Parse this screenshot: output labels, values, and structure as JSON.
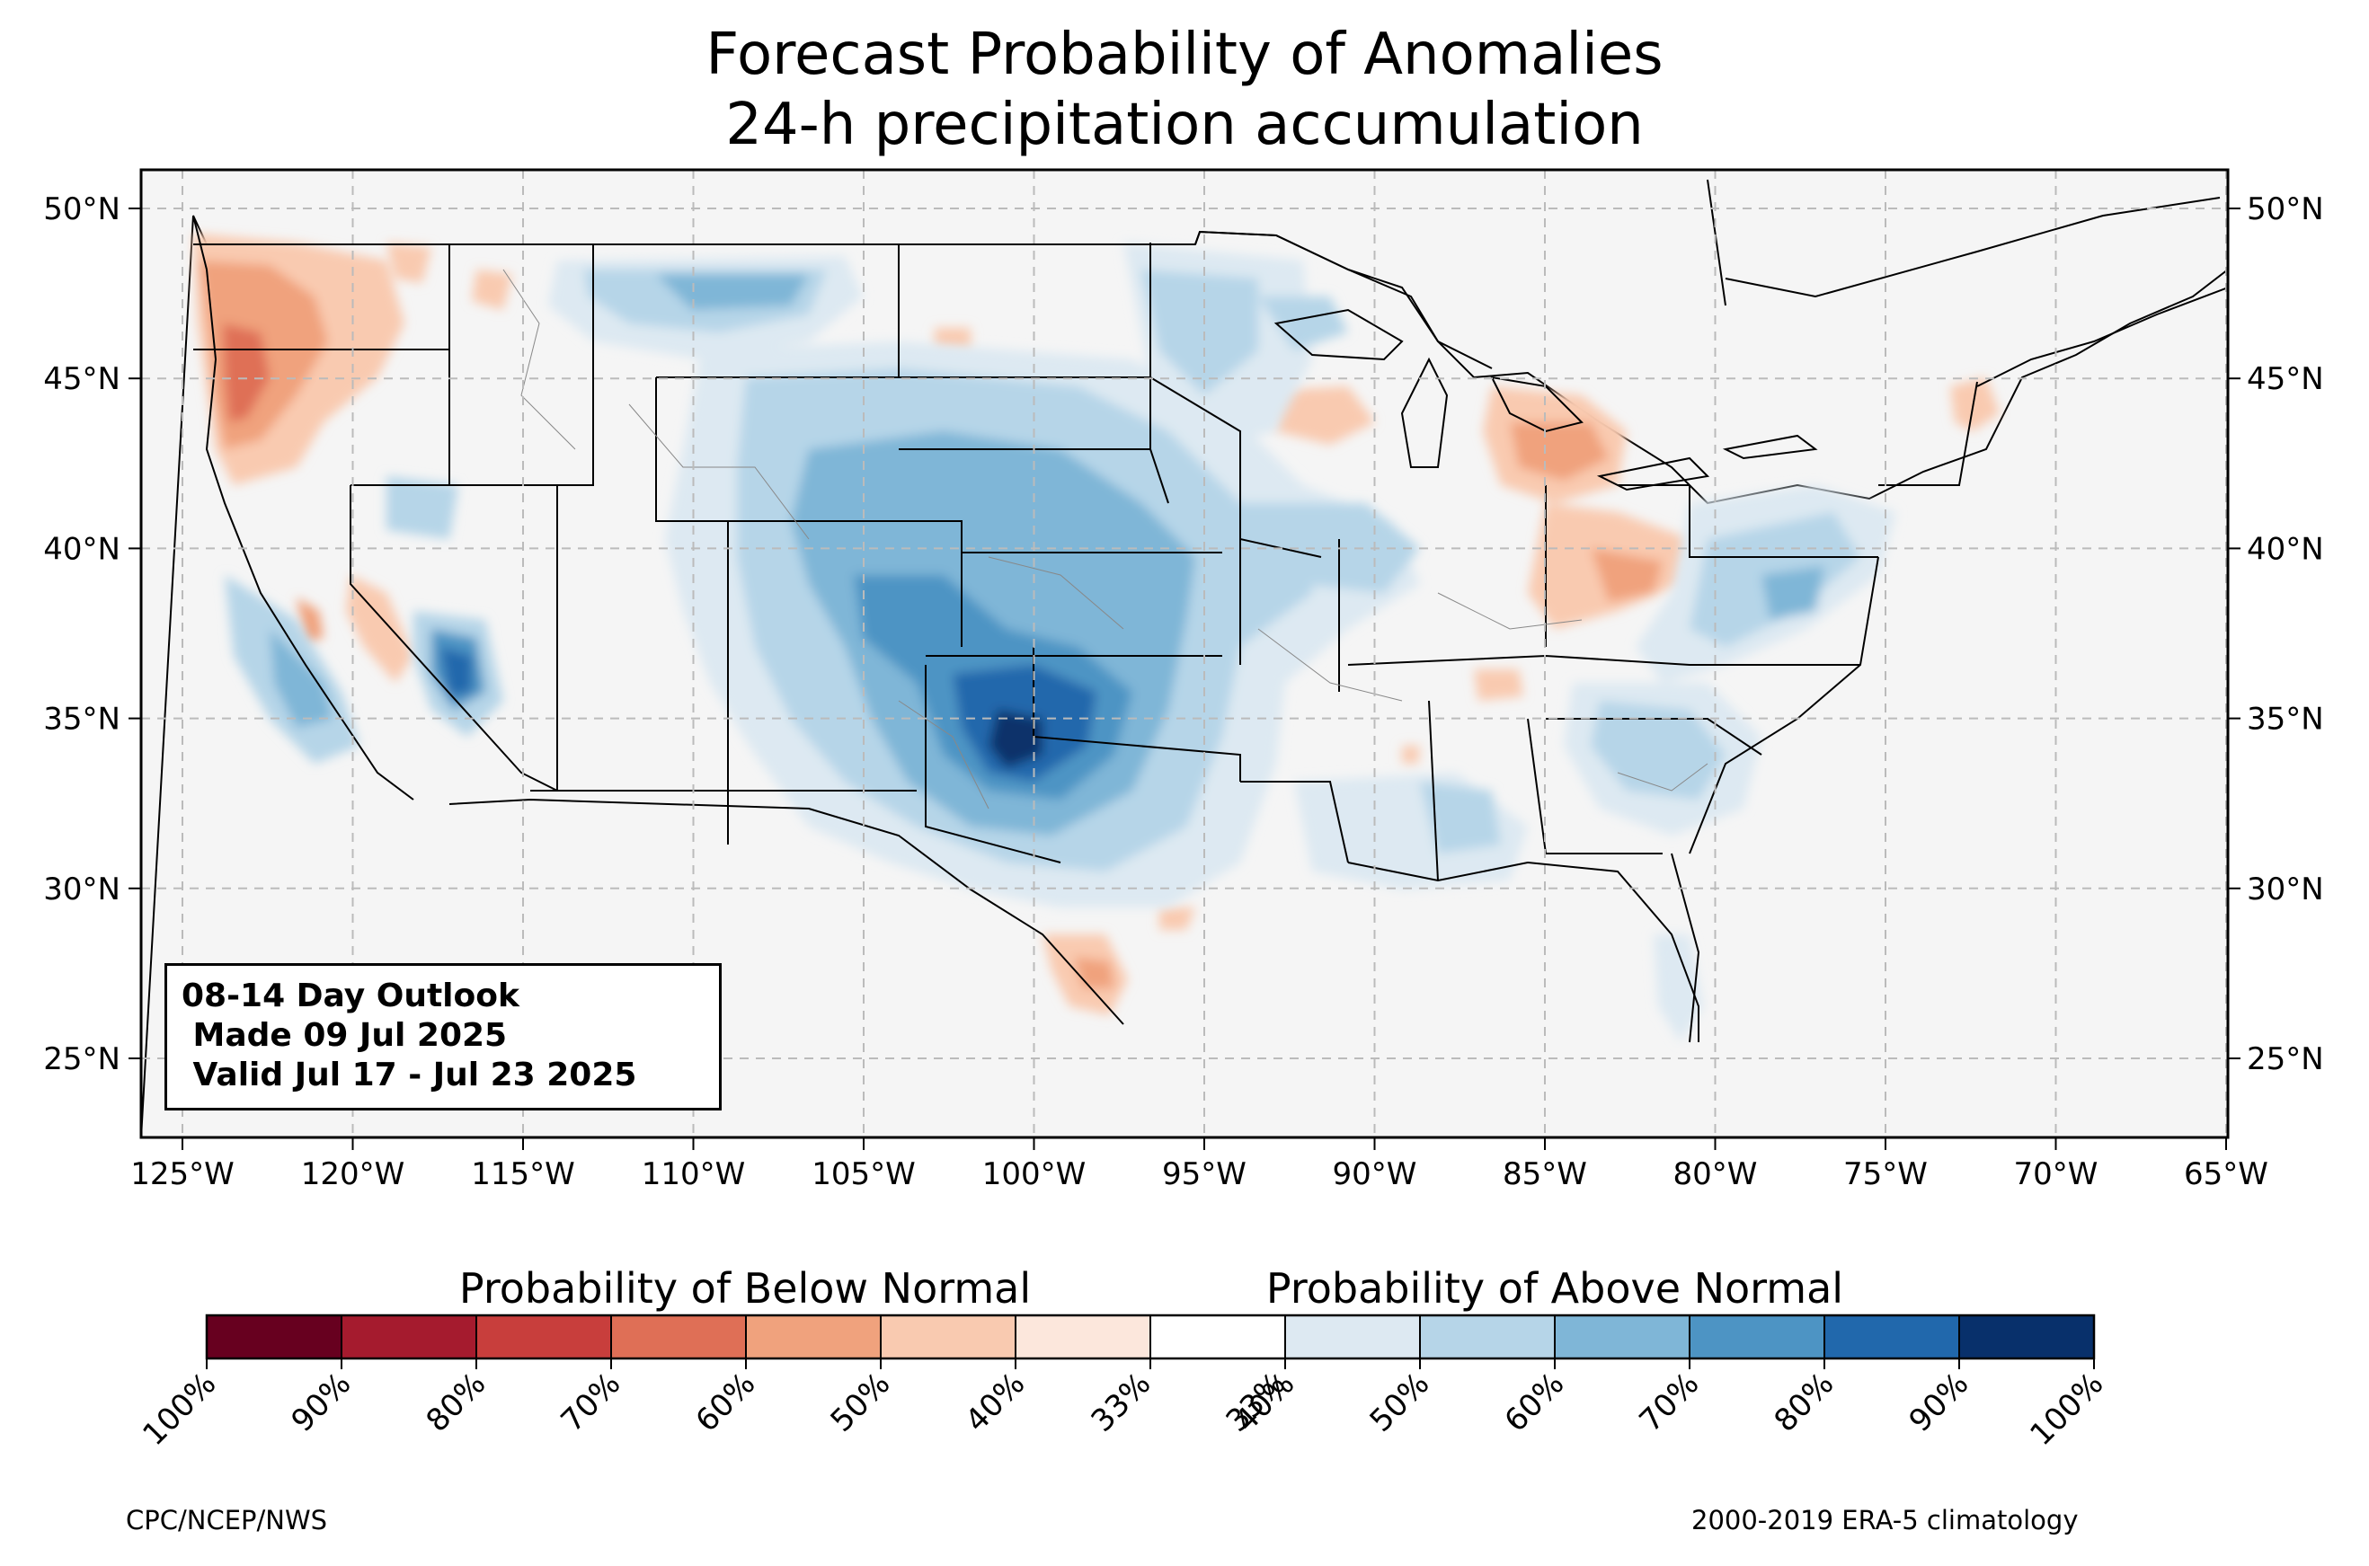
{
  "title_line1": "Forecast Probability of Anomalies",
  "title_line2": "24-h precipitation accumulation",
  "map": {
    "lon_ticks": [
      "125°W",
      "120°W",
      "115°W",
      "110°W",
      "105°W",
      "100°W",
      "95°W",
      "90°W",
      "85°W",
      "80°W",
      "75°W",
      "70°W",
      "65°W"
    ],
    "lat_ticks": [
      "50°N",
      "45°N",
      "40°N",
      "35°N",
      "30°N",
      "25°N"
    ],
    "land_color": "#f5f5f5",
    "grid": "dashed",
    "regions_above": [
      {
        "name": "southern-plains-texas-oklahoma",
        "level": "80%"
      },
      {
        "name": "colorado-kansas-nebraska",
        "level": "60%"
      },
      {
        "name": "northern-plains-montana",
        "level": "50%"
      },
      {
        "name": "southern-california-nevada",
        "level": "70%"
      },
      {
        "name": "mid-atlantic",
        "level": "50%"
      },
      {
        "name": "southeast-carolinas-georgia",
        "level": "50%"
      }
    ],
    "regions_below": [
      {
        "name": "pacific-northwest",
        "level": "60%"
      },
      {
        "name": "michigan",
        "level": "50%"
      },
      {
        "name": "ohio-valley",
        "level": "50%"
      },
      {
        "name": "south-texas",
        "level": "50%"
      }
    ]
  },
  "info_box": {
    "line1": "08-14 Day Outlook",
    "line2": " Made 09 Jul 2025",
    "line3": " Valid Jul 17 - Jul 23 2025"
  },
  "colorbar": {
    "below_label": "Probability of Below Normal",
    "above_label": "Probability of Above Normal",
    "colors": [
      "#67001f",
      "#a51b2e",
      "#c83e3c",
      "#df6f56",
      "#f0a27d",
      "#f9cab0",
      "#fce7dc",
      "#ffffff",
      "#dde9f2",
      "#b6d5e8",
      "#7fb6d7",
      "#4d94c4",
      "#2168ac",
      "#08306b"
    ],
    "tick_labels": [
      "100%",
      "90%",
      "80%",
      "70%",
      "60%",
      "50%",
      "40%",
      "33%",
      "33%",
      "40%",
      "50%",
      "60%",
      "70%",
      "80%",
      "90%",
      "100%"
    ]
  },
  "credit_left": "CPC/NCEP/NWS",
  "credit_right": "2000-2019 ERA-5 climatology"
}
